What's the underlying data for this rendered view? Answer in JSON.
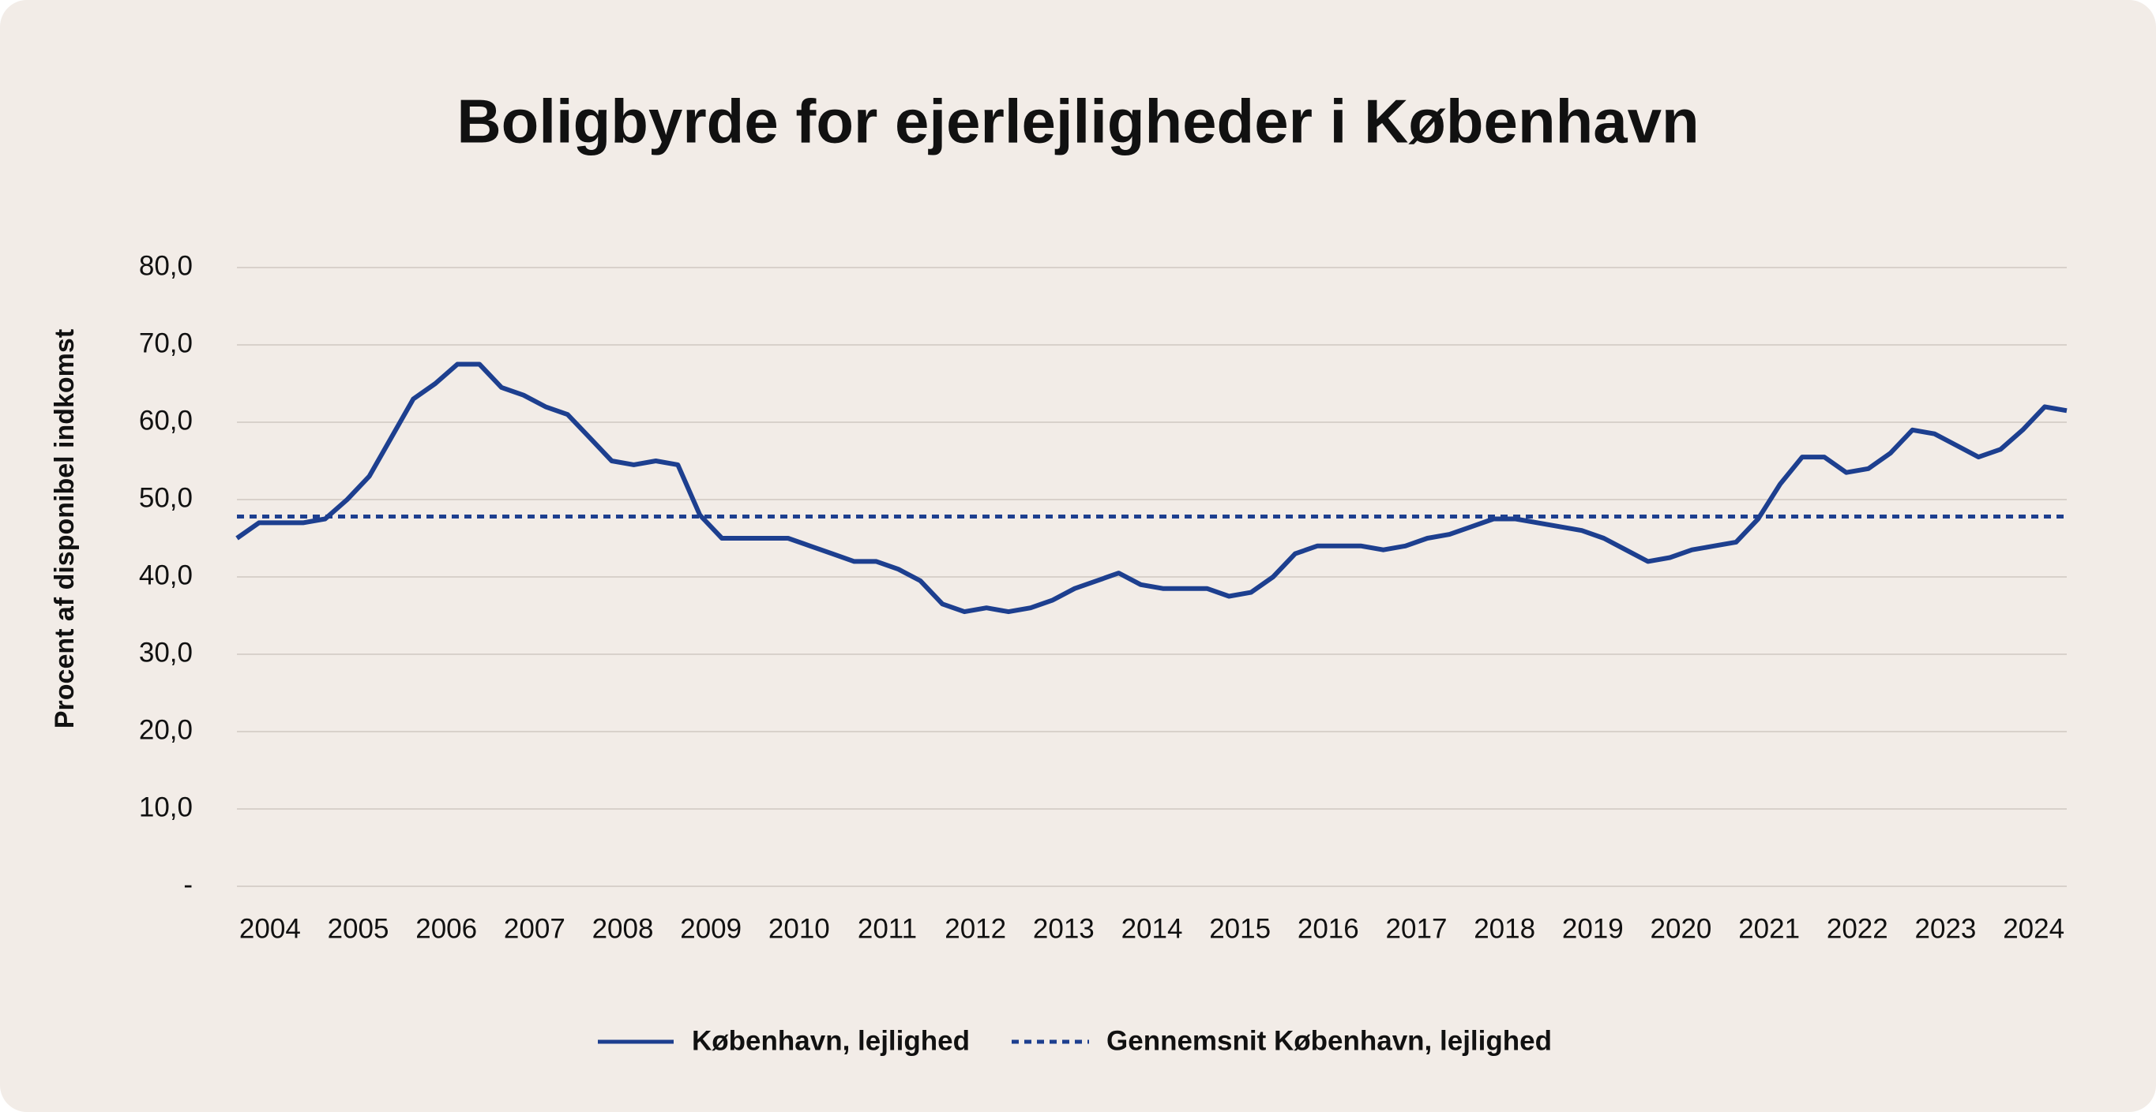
{
  "chart_data": {
    "type": "line",
    "title": "Boligbyrde for ejerlejligheder i København",
    "y_label": "Procent af disponibel indkomst",
    "categories": [
      "2004",
      null,
      null,
      null,
      "2005",
      null,
      null,
      null,
      "2006",
      null,
      null,
      null,
      "2007",
      null,
      null,
      null,
      "2008",
      null,
      null,
      null,
      "2009",
      null,
      null,
      null,
      "2010",
      null,
      null,
      null,
      "2011",
      null,
      null,
      null,
      "2012",
      null,
      null,
      null,
      "2013",
      null,
      null,
      null,
      "2014",
      null,
      null,
      null,
      "2015",
      null,
      null,
      null,
      "2016",
      null,
      null,
      null,
      "2017",
      null,
      null,
      null,
      "2018",
      null,
      null,
      null,
      "2019",
      null,
      null,
      null,
      "2020",
      null,
      null,
      null,
      "2021",
      null,
      null,
      null,
      "2022",
      null,
      null,
      null,
      "2023",
      null,
      null,
      null,
      "2024",
      null,
      null,
      null
    ],
    "series": [
      {
        "name": "København, lejlighed",
        "color": "#1d3f8f",
        "style": "solid",
        "values": [
          45,
          47,
          47,
          47,
          47.5,
          50,
          53,
          58,
          63,
          65,
          67.5,
          67.5,
          64.5,
          63.5,
          62,
          61,
          58,
          55,
          54.5,
          55,
          54.5,
          48,
          45,
          45,
          45,
          45,
          44,
          43,
          42,
          42,
          41,
          39.5,
          36.5,
          35.5,
          36,
          35.5,
          36,
          37,
          38.5,
          39.5,
          40.5,
          39,
          38.5,
          38.5,
          38.5,
          37.5,
          38,
          40,
          43,
          44,
          44,
          44,
          43.5,
          44,
          45,
          45.5,
          46.5,
          47.5,
          47.5,
          47,
          46.5,
          46,
          45,
          43.5,
          42,
          42.5,
          43.5,
          44,
          44.5,
          47.5,
          52,
          55.5,
          55.5,
          53.5,
          54,
          56,
          59,
          58.5,
          57,
          55.5,
          56.5,
          59,
          62,
          61.5
        ]
      },
      {
        "name": "Gennemsnit København, lejlighed",
        "color": "#1d3f8f",
        "style": "dashed",
        "value": 47.8
      }
    ],
    "ylim": [
      0,
      80
    ],
    "yticks": [
      {
        "value": 0,
        "label": "-"
      },
      {
        "value": 10,
        "label": "10,0"
      },
      {
        "value": 20,
        "label": "20,0"
      },
      {
        "value": 30,
        "label": "30,0"
      },
      {
        "value": 40,
        "label": "40,0"
      },
      {
        "value": 50,
        "label": "50,0"
      },
      {
        "value": 60,
        "label": "60,0"
      },
      {
        "value": 70,
        "label": "70,0"
      },
      {
        "value": 80,
        "label": "80,0"
      }
    ],
    "grid": true,
    "legend": "bottom"
  }
}
